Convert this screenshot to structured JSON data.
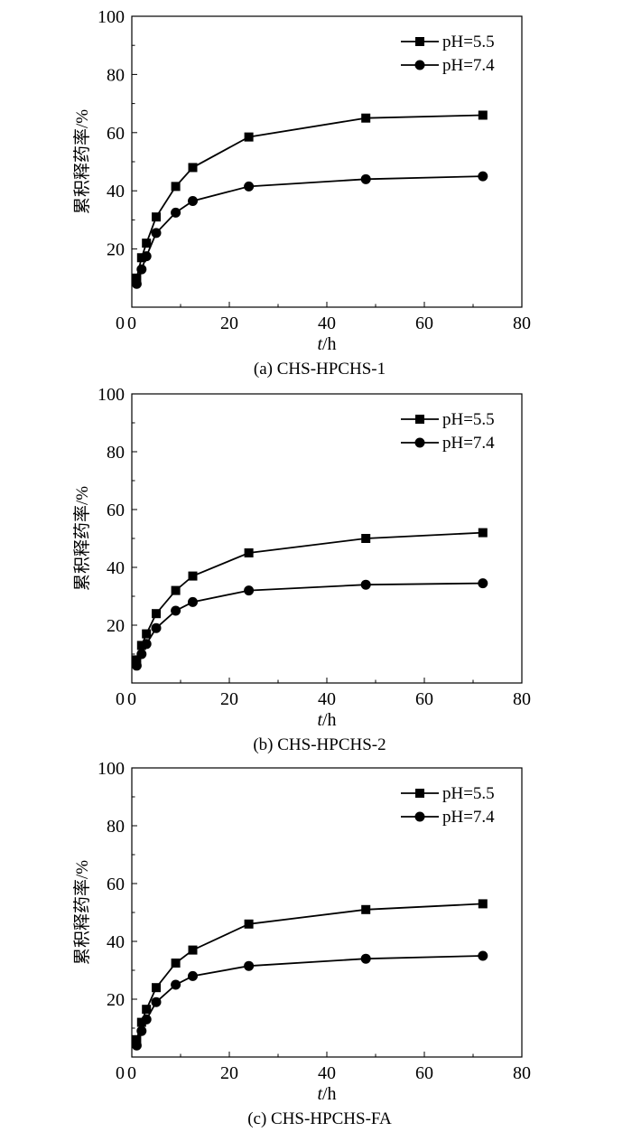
{
  "chart_data": [
    {
      "type": "line",
      "caption": "(a) CHS-HPCHS-1",
      "xlabel_italic": "t",
      "xlabel_unit": "/h",
      "ylabel": "累积释药率/%",
      "xlim": [
        0,
        80
      ],
      "ylim": [
        0,
        100
      ],
      "xticks": [
        0,
        20,
        40,
        60,
        80
      ],
      "yticks": [
        20,
        40,
        60,
        80,
        100
      ],
      "y_zero_label": "0",
      "legend_position": "top-right",
      "series": [
        {
          "name": "pH=5.5",
          "marker": "square",
          "x": [
            1,
            2,
            3,
            5,
            9,
            12.5,
            24,
            48,
            72
          ],
          "y": [
            10,
            17,
            22,
            31,
            41.5,
            48,
            58.5,
            65,
            66
          ]
        },
        {
          "name": "pH=7.4",
          "marker": "circle",
          "x": [
            1,
            2,
            3,
            5,
            9,
            12.5,
            24,
            48,
            72
          ],
          "y": [
            8,
            13,
            17.5,
            25.5,
            32.5,
            36.5,
            41.5,
            44,
            45
          ]
        }
      ]
    },
    {
      "type": "line",
      "caption": "(b) CHS-HPCHS-2",
      "xlabel_italic": "t",
      "xlabel_unit": "/h",
      "ylabel": "累积释药率/%",
      "xlim": [
        0,
        80
      ],
      "ylim": [
        0,
        100
      ],
      "xticks": [
        0,
        20,
        40,
        60,
        80
      ],
      "yticks": [
        20,
        40,
        60,
        80,
        100
      ],
      "y_zero_label": "0",
      "legend_position": "top-right",
      "series": [
        {
          "name": "pH=5.5",
          "marker": "square",
          "x": [
            1,
            2,
            3,
            5,
            9,
            12.5,
            24,
            48,
            72
          ],
          "y": [
            8,
            13,
            17,
            24,
            32,
            37,
            45,
            50,
            52
          ]
        },
        {
          "name": "pH=7.4",
          "marker": "circle",
          "x": [
            1,
            2,
            3,
            5,
            9,
            12.5,
            24,
            48,
            72
          ],
          "y": [
            6,
            10,
            13.5,
            19,
            25,
            28,
            32,
            34,
            34.5
          ]
        }
      ]
    },
    {
      "type": "line",
      "caption": "(c) CHS-HPCHS-FA",
      "xlabel_italic": "t",
      "xlabel_unit": "/h",
      "ylabel": "累积释药率/%",
      "xlim": [
        0,
        80
      ],
      "ylim": [
        0,
        100
      ],
      "xticks": [
        0,
        20,
        40,
        60,
        80
      ],
      "yticks": [
        20,
        40,
        60,
        80,
        100
      ],
      "y_zero_label": "0",
      "legend_position": "top-right",
      "series": [
        {
          "name": "pH=5.5",
          "marker": "square",
          "x": [
            1,
            2,
            3,
            5,
            9,
            12.5,
            24,
            48,
            72
          ],
          "y": [
            6,
            12,
            16.5,
            24,
            32.5,
            37,
            46,
            51,
            53
          ]
        },
        {
          "name": "pH=7.4",
          "marker": "circle",
          "x": [
            1,
            2,
            3,
            5,
            9,
            12.5,
            24,
            48,
            72
          ],
          "y": [
            4,
            9,
            13,
            19,
            25,
            28,
            31.5,
            34,
            35
          ]
        }
      ]
    }
  ]
}
